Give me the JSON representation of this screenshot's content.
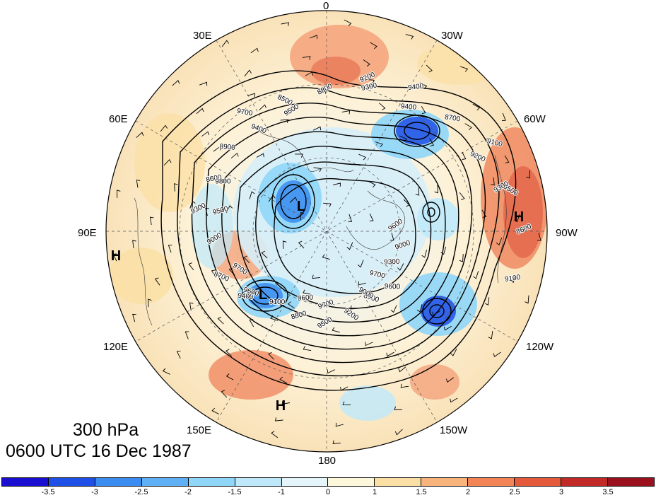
{
  "title": {
    "level": "300 hPa",
    "datetime": "0600 UTC 16 Dec 1987"
  },
  "lon_labels": {
    "n0": "0",
    "n30w": "30W",
    "n60w": "60W",
    "n90w": "90W",
    "n120w": "120W",
    "n150w": "150W",
    "n180": "180",
    "n150e": "150E",
    "n120e": "120E",
    "n90e": "90E",
    "n60e": "60E",
    "n30e": "30E"
  },
  "contour_labels": [
    "9600",
    "9600",
    "9500",
    "9400",
    "9300",
    "9700",
    "9200",
    "9100",
    "9000",
    "8900",
    "8800",
    "8700",
    "8600",
    "8500",
    "9400",
    "9500",
    "9300",
    "9200",
    "9100",
    "9000",
    "8900",
    "8800",
    "8700",
    "8600",
    "9700",
    "9700",
    "9600",
    "9500",
    "9400",
    "9300",
    "9200",
    "9100",
    "9000",
    "9600",
    "9700",
    "9800",
    "9500",
    "9400",
    "9300"
  ],
  "pressure_systems": [
    {
      "type": "H",
      "name": "high-west-atlantic"
    },
    {
      "type": "H",
      "name": "high-central-asia"
    },
    {
      "type": "H",
      "name": "high-north-pacific"
    },
    {
      "type": "L",
      "name": "low-siberia"
    },
    {
      "type": "L",
      "name": "low-east-asia"
    }
  ],
  "colorbar": {
    "ticks": [
      "-3.5",
      "-3",
      "-2.5",
      "-2",
      "-1.5",
      "-1",
      "0",
      "1",
      "1.5",
      "2",
      "2.5",
      "3",
      "3.5"
    ],
    "colors": [
      "#1a0fd0",
      "#1e4fe6",
      "#3a8cf0",
      "#5fb0f4",
      "#8fd6f8",
      "#bfe9fb",
      "#e4f5fb",
      "#fdf7dc",
      "#fbe0a6",
      "#f8b47a",
      "#f28456",
      "#e65a3c",
      "#c22a28",
      "#9a101c"
    ]
  }
}
